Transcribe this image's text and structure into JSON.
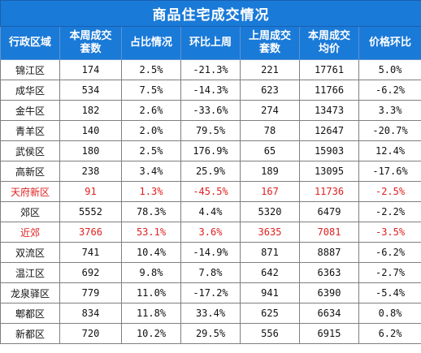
{
  "table": {
    "title": "商品住宅成交情况",
    "header_color": "#1a7ad8",
    "highlight_color": "#e02020",
    "columns": [
      {
        "line1": "行政区域",
        "line2": ""
      },
      {
        "line1": "本周成交",
        "line2": "套数"
      },
      {
        "line1": "占比情况",
        "line2": ""
      },
      {
        "line1": "环比上周",
        "line2": ""
      },
      {
        "line1": "上周成交",
        "line2": "套数"
      },
      {
        "line1": "本周成交",
        "line2": "均价"
      },
      {
        "line1": "价格环比",
        "line2": ""
      }
    ],
    "rows": [
      {
        "highlight": false,
        "cells": [
          "锦江区",
          "174",
          "2.5%",
          "-21.3%",
          "221",
          "17761",
          "5.0%"
        ]
      },
      {
        "highlight": false,
        "cells": [
          "成华区",
          "534",
          "7.5%",
          "-14.3%",
          "623",
          "11766",
          "-6.2%"
        ]
      },
      {
        "highlight": false,
        "cells": [
          "金牛区",
          "182",
          "2.6%",
          "-33.6%",
          "274",
          "13473",
          "3.3%"
        ]
      },
      {
        "highlight": false,
        "cells": [
          "青羊区",
          "140",
          "2.0%",
          "79.5%",
          "78",
          "12647",
          "-20.7%"
        ]
      },
      {
        "highlight": false,
        "cells": [
          "武侯区",
          "180",
          "2.5%",
          "176.9%",
          "65",
          "15903",
          "12.4%"
        ]
      },
      {
        "highlight": false,
        "cells": [
          "高新区",
          "238",
          "3.4%",
          "25.9%",
          "189",
          "13095",
          "-17.6%"
        ]
      },
      {
        "highlight": true,
        "cells": [
          "天府新区",
          "91",
          "1.3%",
          "-45.5%",
          "167",
          "11736",
          "-2.5%"
        ]
      },
      {
        "highlight": false,
        "cells": [
          "郊区",
          "5552",
          "78.3%",
          "4.4%",
          "5320",
          "6479",
          "-2.2%"
        ]
      },
      {
        "highlight": true,
        "cells": [
          "近郊",
          "3766",
          "53.1%",
          "3.6%",
          "3635",
          "7081",
          "-3.5%"
        ]
      },
      {
        "highlight": false,
        "cells": [
          "双流区",
          "741",
          "10.4%",
          "-14.9%",
          "871",
          "8887",
          "-6.2%"
        ]
      },
      {
        "highlight": false,
        "cells": [
          "温江区",
          "692",
          "9.8%",
          "7.8%",
          "642",
          "6363",
          "-2.7%"
        ]
      },
      {
        "highlight": false,
        "cells": [
          "龙泉驿区",
          "779",
          "11.0%",
          "-17.2%",
          "941",
          "6390",
          "-5.4%"
        ]
      },
      {
        "highlight": false,
        "cells": [
          "郫都区",
          "834",
          "11.8%",
          "33.4%",
          "625",
          "6634",
          "0.8%"
        ]
      },
      {
        "highlight": false,
        "cells": [
          "新都区",
          "720",
          "10.2%",
          "29.5%",
          "556",
          "6915",
          "6.2%"
        ]
      }
    ]
  }
}
